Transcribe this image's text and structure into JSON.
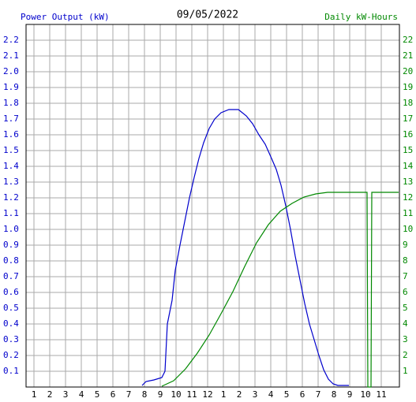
{
  "chart_data": {
    "type": "line",
    "title": "09/05/2022",
    "y_label": "Power Output (kW)",
    "y2_label": "Daily kW-Hours",
    "grid": true,
    "xlim": [
      0.5,
      24.15
    ],
    "xticks": [
      1,
      2,
      3,
      4,
      5,
      6,
      7,
      8,
      9,
      10,
      11,
      12,
      {
        "value": 13,
        "label": "1"
      },
      {
        "value": 14,
        "label": "2"
      },
      {
        "value": 15,
        "label": "3"
      },
      {
        "value": 16,
        "label": "4"
      },
      {
        "value": 17,
        "label": "5"
      },
      {
        "value": 18,
        "label": "6"
      },
      {
        "value": 19,
        "label": "7"
      },
      {
        "value": 20,
        "label": "8"
      },
      {
        "value": 21,
        "label": "9"
      },
      {
        "value": 22,
        "label": "10"
      },
      {
        "value": 23,
        "label": "11"
      }
    ],
    "ylim": [
      0,
      2.3
    ],
    "yticks": [
      0.1,
      0.2,
      0.3,
      0.4,
      0.5,
      0.6,
      0.7,
      0.8,
      0.9,
      {
        "value": 1,
        "label": "1.0"
      },
      1.1,
      1.2,
      1.3,
      1.4,
      1.5,
      1.6,
      1.7,
      1.8,
      1.9,
      {
        "value": 2,
        "label": "2.0"
      },
      2.1,
      2.2
    ],
    "y2lim": [
      0,
      23
    ],
    "y2ticks": [
      1,
      2,
      3,
      4,
      5,
      6,
      7,
      8,
      9,
      10,
      11,
      12,
      13,
      14,
      15,
      16,
      17,
      18,
      19,
      20,
      21,
      22
    ],
    "series": [
      {
        "name": "Power Output (kW)",
        "color": "#0000cc",
        "x": [
          7.85,
          8.1,
          8.6,
          9.1,
          9.3,
          9.45,
          9.75,
          9.95,
          10.25,
          10.55,
          10.85,
          11.15,
          11.45,
          11.75,
          12.1,
          12.45,
          12.85,
          13.35,
          13.95,
          14.45,
          14.85,
          15.25,
          15.65,
          16.05,
          16.35,
          16.65,
          16.95,
          17.25,
          17.55,
          17.85,
          18.15,
          18.45,
          18.75,
          19.05,
          19.35,
          19.65,
          19.95,
          20.25,
          20.95
        ],
        "values": [
          0.01,
          0.035,
          0.045,
          0.06,
          0.1,
          0.4,
          0.55,
          0.74,
          0.9,
          1.05,
          1.2,
          1.33,
          1.45,
          1.55,
          1.64,
          1.7,
          1.74,
          1.76,
          1.76,
          1.72,
          1.67,
          1.6,
          1.54,
          1.45,
          1.38,
          1.28,
          1.15,
          1.0,
          0.83,
          0.68,
          0.53,
          0.4,
          0.3,
          0.2,
          0.11,
          0.05,
          0.02,
          0.01,
          0.01
        ]
      },
      {
        "name": "Daily kW-Hours",
        "color": "#008800",
        "axis": "y2",
        "x": [
          9.1,
          9.85,
          10.6,
          11.35,
          12.1,
          12.85,
          13.6,
          14.35,
          15.1,
          15.85,
          16.6,
          17.35,
          18.1,
          18.85,
          19.6,
          22.1,
          22.15,
          22.35,
          22.4,
          24.1
        ],
        "values": [
          0.05,
          0.4,
          1.15,
          2.15,
          3.3,
          4.65,
          6.05,
          7.65,
          9.15,
          10.3,
          11.15,
          11.65,
          12.05,
          12.25,
          12.35,
          12.35,
          0,
          0,
          12.35,
          12.35
        ]
      }
    ]
  }
}
